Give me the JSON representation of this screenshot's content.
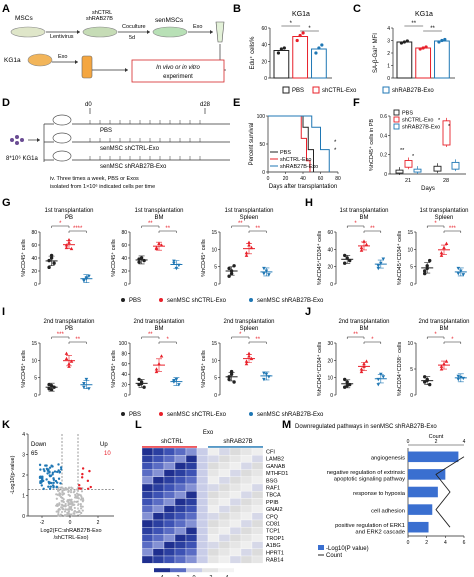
{
  "panel_letters": [
    "A",
    "B",
    "C",
    "D",
    "E",
    "F",
    "G",
    "H",
    "I",
    "J",
    "K",
    "L",
    "M"
  ],
  "panelA": {
    "mscs": "MSCs",
    "lentivirus": "Lentivirus",
    "shctrl_line1": "shCTRL",
    "shctrl_line2": "shRAB27B",
    "coculture": "Coculture",
    "coculture_days": "5d",
    "senmscs": "senMSCs",
    "exo_top": "Exo",
    "kg1a": "KG1a",
    "exo_bottom": "Exo",
    "experiment_line1": "In vivo or in vitro",
    "experiment_line2": "experiment"
  },
  "panelB": {
    "title": "KG1a",
    "ylabel": "Edu⁺ cells%",
    "yticks": [
      "0",
      "20",
      "40",
      "60"
    ],
    "sig": [
      "*",
      "*"
    ]
  },
  "panelC": {
    "title": "KG1a",
    "ylabel": "SA-β-Gal⁺ MFI",
    "yticks": [
      "0",
      "1",
      "2",
      "3",
      "4"
    ],
    "sig": [
      "**",
      "**"
    ]
  },
  "legend_top": [
    "PBS",
    "shCTRL-Exo",
    "shRAB27B-Exo"
  ],
  "panelD": {
    "d0": "d0",
    "d28": "d28",
    "cells": "8*10⁶ KG1a",
    "arm1": "PBS",
    "arm2": "senMSC shCTRL-Exo",
    "arm3": "senMSC shRAB27B-Exo",
    "note_line1": "iv. Three times a week, PBS or Exos",
    "note_line2": "isolated from 1×10⁶ indicated cells per time"
  },
  "panelE": {
    "ylabel": "Percent survival",
    "xlabel": "Days after transplantation",
    "yticks": [
      "0",
      "50",
      "100"
    ],
    "xticks": [
      "0",
      "20",
      "40",
      "60",
      "80"
    ],
    "legend": [
      "PBS",
      "shCTRL-Exo",
      "shRAB27B-Exo"
    ],
    "sig": [
      "*",
      "*"
    ]
  },
  "panelF": {
    "ylabel": "%hCD45⁺ cells in PB",
    "xlabel": "Days",
    "yticks": [
      "0",
      "0.2",
      "0.4",
      "0.6"
    ],
    "xgroups": [
      "21",
      "28"
    ],
    "legend": [
      "PBS",
      "shCTRL-Exo",
      "shRAB27B-Exo"
    ],
    "sig": [
      "**",
      "*",
      "*",
      "*"
    ]
  },
  "panelG": {
    "header": "1st transplantation",
    "plots": [
      {
        "title": "PB",
        "ylabel": "%hCD45⁺ cells",
        "yticks": [
          "0",
          "20",
          "40",
          "60",
          "80"
        ],
        "sig": [
          "*",
          "****"
        ]
      },
      {
        "title": "BM",
        "ylabel": "%hCD45⁺ cells",
        "yticks": [
          "0",
          "20",
          "40",
          "60",
          "80"
        ],
        "sig": [
          "**",
          "**"
        ]
      },
      {
        "title": "Spleen",
        "ylabel": "%hCD45⁺ cells",
        "yticks": [
          "0",
          "5",
          "10",
          "15"
        ],
        "sig": [
          "**",
          "**"
        ]
      }
    ]
  },
  "panelH": {
    "header": "1st transplantation",
    "plots": [
      {
        "title": "BM",
        "ylabel": "%hCD45⁺CD34⁺ cells",
        "yticks": [
          "0",
          "20",
          "40",
          "60"
        ],
        "sig": [
          "*",
          "**"
        ]
      },
      {
        "title": "Spleen",
        "ylabel": "%hCD45⁺CD34⁺ cells",
        "yticks": [
          "0",
          "5",
          "10",
          "15"
        ],
        "sig": [
          "*",
          "***"
        ]
      }
    ]
  },
  "legend_mid1": [
    "PBS",
    "senMSC shCTRL-Exo",
    "senMSC shRAB27B-Exo"
  ],
  "panelI": {
    "header": "2nd transplantation",
    "plots": [
      {
        "title": "PB",
        "ylabel": "%hCD45⁺ cells",
        "yticks": [
          "0",
          "5",
          "10",
          "15"
        ],
        "sig": [
          "***",
          "**"
        ]
      },
      {
        "title": "BM",
        "ylabel": "%hCD45⁺ cells",
        "yticks": [
          "0",
          "20",
          "40",
          "60",
          "80",
          "100"
        ],
        "sig": [
          "**",
          "*"
        ]
      },
      {
        "title": "Spleen",
        "ylabel": "%hCD45⁺ cells",
        "yticks": [
          "0",
          "5",
          "10",
          "15"
        ],
        "sig": [
          "*",
          "**"
        ]
      }
    ]
  },
  "panelJ": {
    "header": "2nd transplantation",
    "plots": [
      {
        "title": "BM",
        "ylabel": "%hCD45⁺CD34⁺ cells",
        "yticks": [
          "0",
          "10",
          "20",
          "30"
        ],
        "sig": [
          "**",
          "*"
        ]
      },
      {
        "title": "BM",
        "ylabel": "%hCD34⁺CD38⁻ cells",
        "yticks": [
          "0",
          "5",
          "10"
        ],
        "sig": [
          "*",
          "*"
        ]
      }
    ]
  },
  "legend_mid2": [
    "PBS",
    "senMSC shCTRL-Exo",
    "senMSC shRAB27B-Exo"
  ],
  "panelK": {
    "ylabel": "-Log10(p-value)",
    "xlabel_line1": "Log2(FC:shRAB27B-Exo",
    "xlabel_line2": "/shCTRL-Exo)",
    "yticks": [
      "0",
      "1",
      "2",
      "3",
      "4"
    ],
    "xticks": [
      "-2",
      "0",
      "2"
    ],
    "down_label": "Down",
    "down_count": "65",
    "up_label": "Up",
    "up_count": "10"
  },
  "panelL": {
    "exo": "Exo",
    "col1": "shCTRL",
    "col2": "shRAB27B",
    "genes": [
      "CFI",
      "LAMB2",
      "GANAB",
      "MTHFD1",
      "BSG",
      "RAF1",
      "TBCA",
      "PPIB",
      "GNAI2",
      "CPQ",
      "CD81",
      "TCP1",
      "TROP1",
      "A1BG",
      "HPRT1",
      "RAB14"
    ],
    "scale_ticks": [
      "4",
      "2",
      "0",
      "-2",
      "-4"
    ]
  },
  "panelM": {
    "title": "Downregulated pathways in senMSC shRAB27B-Exo",
    "count_label": "Count",
    "count_ticks": [
      "0",
      "2",
      "4"
    ],
    "pathways": [
      "angiogenesis",
      "negative regulation of extrinsic apoptotic signaling pathway",
      "response to hypoxia",
      "cell adhesion",
      "positive regulation of ERK1 and ERK2 cascade"
    ],
    "pathway_lines": [
      [
        "angiogenesis"
      ],
      [
        "negative regulation of extrinsic",
        "apoptotic signaling pathway"
      ],
      [
        "response to hypoxia"
      ],
      [
        "cell adhesion"
      ],
      [
        "positive regulation of ERK1",
        "and ERK2 cascade"
      ]
    ],
    "xticks": [
      "0",
      "2",
      "4",
      "6"
    ],
    "legend_bar": "-Log10(P value)",
    "legend_line": "Count"
  },
  "colors": {
    "pbs": "#222222",
    "shctrl": "#e8202a",
    "shrab27b": "#1f77b4",
    "heat_high": "#2b3fa0",
    "heat_mid": "#d9dcef",
    "heat_low": "#eeeeee",
    "bar_blue": "#3a6fd0"
  }
}
